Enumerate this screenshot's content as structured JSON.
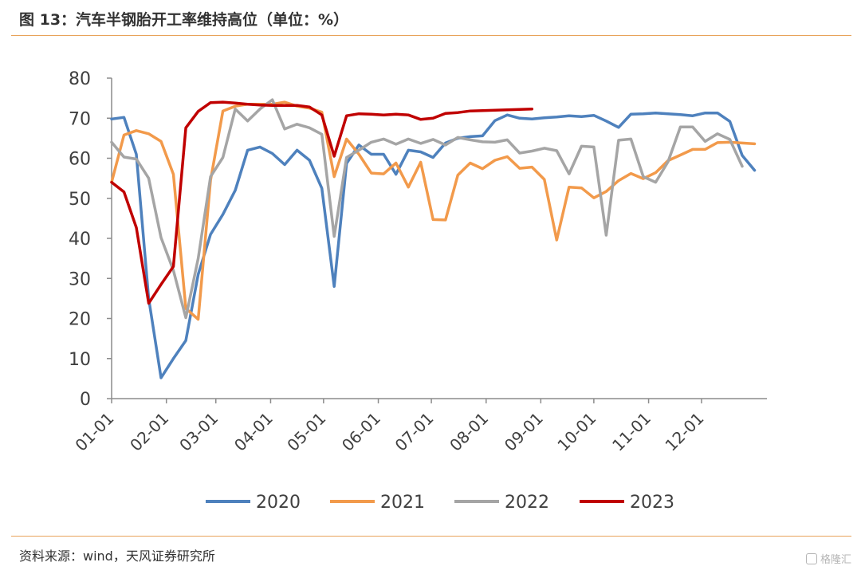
{
  "header": {
    "title": "图 13：汽车半钢胎开工率维持高位（单位：%）"
  },
  "footer": {
    "source": "资料来源：wind，天风证券研究所",
    "watermark": "格隆汇"
  },
  "chart_data": {
    "type": "line",
    "title": "图 13：汽车半钢胎开工率维持高位（单位：%）",
    "xlabel": "",
    "ylabel": "",
    "ylim": [
      0,
      80
    ],
    "yticks": [
      0,
      10,
      20,
      30,
      40,
      50,
      60,
      70,
      80
    ],
    "xlim": [
      0,
      53
    ],
    "xticks": [
      {
        "label": "01-01",
        "week": 0
      },
      {
        "label": "02-01",
        "week": 4.43
      },
      {
        "label": "03-01",
        "week": 8.43
      },
      {
        "label": "04-01",
        "week": 12.86
      },
      {
        "label": "05-01",
        "week": 17.14
      },
      {
        "label": "06-01",
        "week": 21.57
      },
      {
        "label": "07-01",
        "week": 25.86
      },
      {
        "label": "08-01",
        "week": 30.29
      },
      {
        "label": "09-01",
        "week": 34.71
      },
      {
        "label": "10-01",
        "week": 39
      },
      {
        "label": "11-01",
        "week": 43.43
      },
      {
        "label": "12-01",
        "week": 47.71
      }
    ],
    "grid": false,
    "legend_position": "bottom",
    "series": [
      {
        "name": "2020",
        "color": "#4e81bd",
        "points": [
          [
            0,
            69.8
          ],
          [
            1,
            70.2
          ],
          [
            2,
            61
          ],
          [
            3,
            25
          ],
          [
            4,
            5.2
          ],
          [
            5,
            10
          ],
          [
            6,
            14.5
          ],
          [
            7,
            31
          ],
          [
            8,
            41
          ],
          [
            9,
            46
          ],
          [
            10,
            52
          ],
          [
            11,
            62
          ],
          [
            12,
            62.8
          ],
          [
            13,
            61.2
          ],
          [
            14,
            58.4
          ],
          [
            15,
            62
          ],
          [
            16,
            59.5
          ],
          [
            17,
            52.5
          ],
          [
            18,
            28
          ],
          [
            19,
            58.7
          ],
          [
            20,
            63.3
          ],
          [
            21,
            61
          ],
          [
            22,
            61
          ],
          [
            23,
            56
          ],
          [
            24,
            62
          ],
          [
            25,
            61.6
          ],
          [
            26,
            60.2
          ],
          [
            27,
            63.8
          ],
          [
            28,
            65
          ],
          [
            29,
            65.4
          ],
          [
            30,
            65.6
          ],
          [
            31,
            69.4
          ],
          [
            32,
            70.8
          ],
          [
            33,
            70
          ],
          [
            34,
            69.8
          ],
          [
            35,
            70.1
          ],
          [
            36,
            70.3
          ],
          [
            37,
            70.6
          ],
          [
            38,
            70.4
          ],
          [
            39,
            70.7
          ],
          [
            40,
            69.3
          ],
          [
            41,
            67.7
          ],
          [
            42,
            71
          ],
          [
            43,
            71.1
          ],
          [
            44,
            71.3
          ],
          [
            45,
            71.1
          ],
          [
            46,
            70.9
          ],
          [
            47,
            70.6
          ],
          [
            48,
            71.3
          ],
          [
            49,
            71.3
          ],
          [
            50,
            69.2
          ],
          [
            51,
            60.7
          ],
          [
            52,
            57
          ]
        ]
      },
      {
        "name": "2021",
        "color": "#f29a4b",
        "points": [
          [
            0,
            54
          ],
          [
            1,
            65.8
          ],
          [
            2,
            66.9
          ],
          [
            3,
            66.1
          ],
          [
            4,
            64.2
          ],
          [
            5,
            56
          ],
          [
            6,
            22.5
          ],
          [
            7,
            19.8
          ],
          [
            8,
            54.5
          ],
          [
            9,
            71.8
          ],
          [
            10,
            73
          ],
          [
            11,
            73.5
          ],
          [
            12,
            73.5
          ],
          [
            13,
            73.5
          ],
          [
            14,
            74
          ],
          [
            15,
            73
          ],
          [
            16,
            72.5
          ],
          [
            17,
            71.5
          ],
          [
            18,
            55.4
          ],
          [
            19,
            64.8
          ],
          [
            20,
            61
          ],
          [
            21,
            56.3
          ],
          [
            22,
            56.1
          ],
          [
            23,
            58.8
          ],
          [
            24,
            52.8
          ],
          [
            25,
            59
          ],
          [
            26,
            44.7
          ],
          [
            27,
            44.6
          ],
          [
            28,
            55.8
          ],
          [
            29,
            58.8
          ],
          [
            30,
            57.4
          ],
          [
            31,
            59.5
          ],
          [
            32,
            60.4
          ],
          [
            33,
            57.5
          ],
          [
            34,
            57.8
          ],
          [
            35,
            54.7
          ],
          [
            36,
            39.6
          ],
          [
            37,
            52.8
          ],
          [
            38,
            52.6
          ],
          [
            39,
            50.1
          ],
          [
            40,
            51.7
          ],
          [
            41,
            54.4
          ],
          [
            42,
            56.2
          ],
          [
            43,
            54.9
          ],
          [
            44,
            56.4
          ],
          [
            45,
            59.4
          ],
          [
            46,
            60.8
          ],
          [
            47,
            62.2
          ],
          [
            48,
            62.2
          ],
          [
            49,
            63.9
          ],
          [
            50,
            64
          ],
          [
            51,
            63.8
          ],
          [
            52,
            63.6
          ]
        ]
      },
      {
        "name": "2022",
        "color": "#a5a5a5",
        "points": [
          [
            0,
            64
          ],
          [
            1,
            60.3
          ],
          [
            2,
            59.8
          ],
          [
            3,
            55
          ],
          [
            4,
            40.2
          ],
          [
            5,
            32
          ],
          [
            6,
            20.2
          ],
          [
            7,
            35
          ],
          [
            8,
            55.4
          ],
          [
            9,
            60.2
          ],
          [
            10,
            72.3
          ],
          [
            11,
            69.3
          ],
          [
            12,
            72.3
          ],
          [
            13,
            74.6
          ],
          [
            14,
            67.3
          ],
          [
            15,
            68.5
          ],
          [
            16,
            67.6
          ],
          [
            17,
            66
          ],
          [
            18,
            40.5
          ],
          [
            19,
            60.2
          ],
          [
            20,
            62
          ],
          [
            21,
            64
          ],
          [
            22,
            64.8
          ],
          [
            23,
            63.5
          ],
          [
            24,
            64.8
          ],
          [
            25,
            63.7
          ],
          [
            26,
            64.7
          ],
          [
            27,
            63.3
          ],
          [
            28,
            65.2
          ],
          [
            29,
            64.6
          ],
          [
            30,
            64.1
          ],
          [
            31,
            64
          ],
          [
            32,
            64.6
          ],
          [
            33,
            61.3
          ],
          [
            34,
            61.8
          ],
          [
            35,
            62.5
          ],
          [
            36,
            61.9
          ],
          [
            37,
            56.1
          ],
          [
            38,
            63
          ],
          [
            39,
            62.8
          ],
          [
            40,
            40.8
          ],
          [
            41,
            64.5
          ],
          [
            42,
            64.8
          ],
          [
            43,
            55.4
          ],
          [
            44,
            54
          ],
          [
            45,
            59.1
          ],
          [
            46,
            67.8
          ],
          [
            47,
            67.8
          ],
          [
            48,
            64.2
          ],
          [
            49,
            66.1
          ],
          [
            50,
            64.7
          ],
          [
            51,
            58
          ]
        ]
      },
      {
        "name": "2023",
        "color": "#c00000",
        "points": [
          [
            0,
            54
          ],
          [
            1,
            51.6
          ],
          [
            2,
            42.7
          ],
          [
            3,
            23.8
          ],
          [
            4,
            28.5
          ],
          [
            5,
            33
          ],
          [
            6,
            67.6
          ],
          [
            7,
            71.7
          ],
          [
            8,
            73.9
          ],
          [
            9,
            74
          ],
          [
            10,
            73.8
          ],
          [
            11,
            73.5
          ],
          [
            12,
            73.3
          ],
          [
            13,
            73.2
          ],
          [
            14,
            73.2
          ],
          [
            15,
            73.2
          ],
          [
            16,
            72.8
          ],
          [
            17,
            70.8
          ],
          [
            18,
            60.5
          ],
          [
            19,
            70.6
          ],
          [
            20,
            71.1
          ],
          [
            21,
            71
          ],
          [
            22,
            70.8
          ],
          [
            23,
            71
          ],
          [
            24,
            70.8
          ],
          [
            25,
            69.7
          ],
          [
            26,
            70
          ],
          [
            27,
            71.2
          ],
          [
            28,
            71.4
          ],
          [
            29,
            71.8
          ],
          [
            30,
            71.9
          ],
          [
            31,
            72
          ],
          [
            32,
            72.1
          ],
          [
            33,
            72.2
          ],
          [
            34,
            72.3
          ]
        ]
      }
    ]
  }
}
